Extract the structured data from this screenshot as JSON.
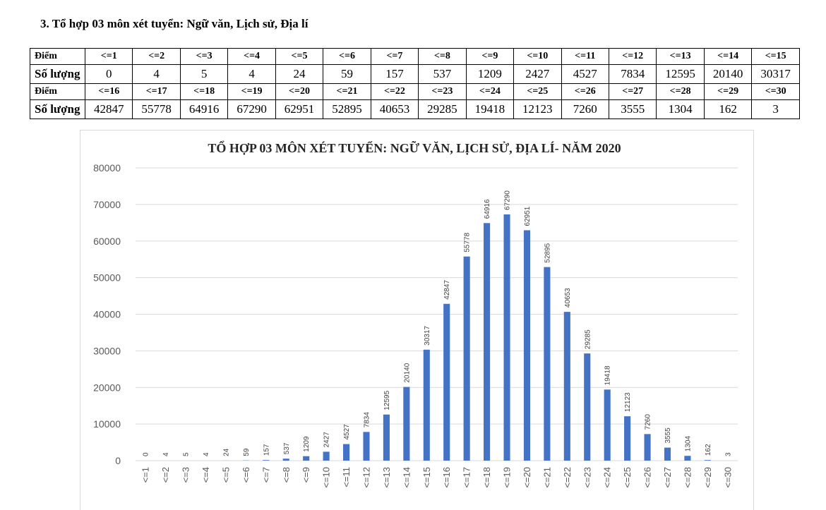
{
  "heading": "3. Tổ hợp 03 môn xét tuyển: Ngữ văn, Lịch sử, Địa lí",
  "table": {
    "score_label": "Điểm",
    "count_label": "Số lượng",
    "rows": [
      {
        "scores": [
          "<=1",
          "<=2",
          "<=3",
          "<=4",
          "<=5",
          "<=6",
          "<=7",
          "<=8",
          "<=9",
          "<=10",
          "<=11",
          "<=12",
          "<=13",
          "<=14",
          "<=15"
        ],
        "counts": [
          "0",
          "4",
          "5",
          "4",
          "24",
          "59",
          "157",
          "537",
          "1209",
          "2427",
          "4527",
          "7834",
          "12595",
          "20140",
          "30317"
        ]
      },
      {
        "scores": [
          "<=16",
          "<=17",
          "<=18",
          "<=19",
          "<=20",
          "<=21",
          "<=22",
          "<=23",
          "<=24",
          "<=25",
          "<=26",
          "<=27",
          "<=28",
          "<=29",
          "<=30"
        ],
        "counts": [
          "42847",
          "55778",
          "64916",
          "67290",
          "62951",
          "52895",
          "40653",
          "29285",
          "19418",
          "12123",
          "7260",
          "3555",
          "1304",
          "162",
          "3"
        ]
      }
    ]
  },
  "chart_data": {
    "type": "bar",
    "title": "TỔ HỢP 03 MÔN XÉT TUYỂN: NGỮ VĂN, LỊCH SỬ, ĐỊA LÍ- NĂM 2020",
    "categories": [
      "<=1",
      "<=2",
      "<=3",
      "<=4",
      "<=5",
      "<=6",
      "<=7",
      "<=8",
      "<=9",
      "<=10",
      "<=11",
      "<=12",
      "<=13",
      "<=14",
      "<=15",
      "<=16",
      "<=17",
      "<=18",
      "<=19",
      "<=20",
      "<=21",
      "<=22",
      "<=23",
      "<=24",
      "<=25",
      "<=26",
      "<=27",
      "<=28",
      "<=29",
      "<=30"
    ],
    "values": [
      0,
      4,
      5,
      4,
      24,
      59,
      157,
      537,
      1209,
      2427,
      4527,
      7834,
      12595,
      20140,
      30317,
      42847,
      55778,
      64916,
      67290,
      62951,
      52895,
      40653,
      29285,
      19418,
      12123,
      7260,
      3555,
      1304,
      162,
      3
    ],
    "ylim": [
      0,
      80000
    ],
    "yticks": [
      0,
      10000,
      20000,
      30000,
      40000,
      50000,
      60000,
      70000,
      80000
    ],
    "data_labels": true,
    "grid": true,
    "legend": "none",
    "bar_color": "#4472c4",
    "xlabel": "",
    "ylabel": ""
  }
}
